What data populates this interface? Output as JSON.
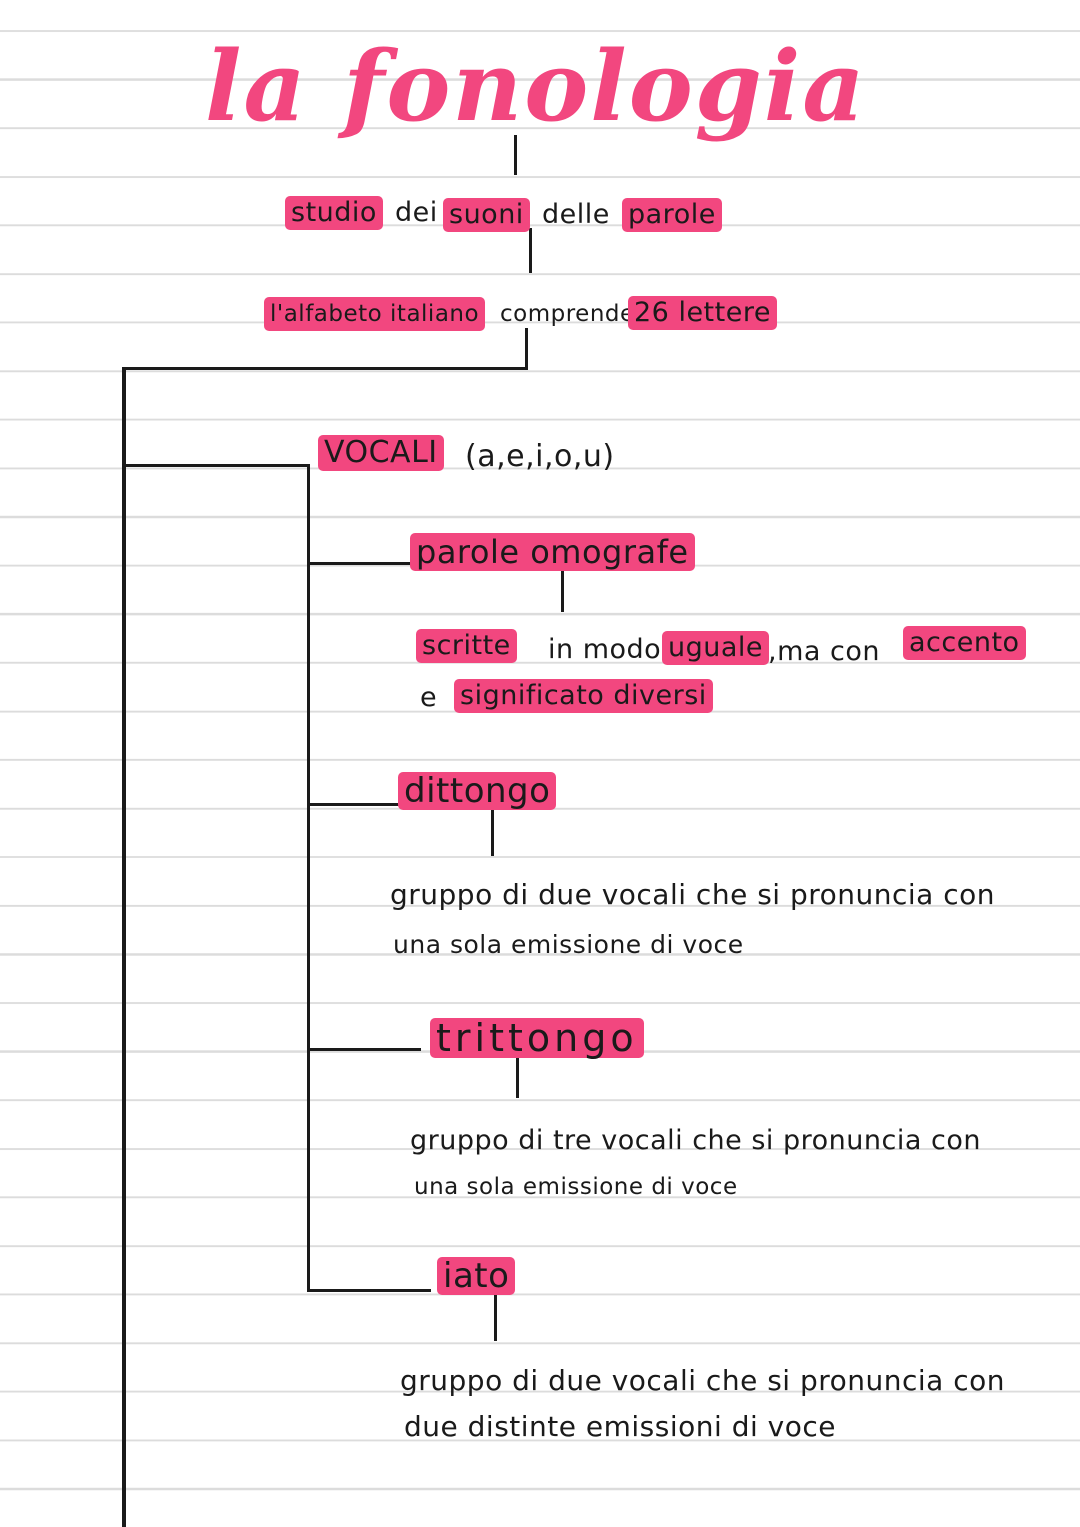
{
  "title": "la fonologia",
  "colors": {
    "highlight": "#f2477f",
    "ink": "#1a1a1a"
  },
  "definition": {
    "w1": "studio",
    "w2": "dei",
    "w3": "suoni",
    "w4": "delle",
    "w5": "parole"
  },
  "alphabet": {
    "w1": "l'alfabeto italiano",
    "w2": "comprende",
    "w3": "26 lettere"
  },
  "vocali": {
    "label": "VOCALI",
    "list": "(a,e,i,o,u)"
  },
  "omografe": {
    "label": "parole omografe",
    "w1": "scritte",
    "w2": "in modo",
    "w3": "uguale",
    "w4": ",ma con",
    "w5": "accento",
    "w6": "e",
    "w7": "significato diversi"
  },
  "dittongo": {
    "label": "dittongo",
    "line1": "gruppo di due vocali che si pronuncia con",
    "line2": "una sola emissione di voce"
  },
  "trittongo": {
    "label": "trittongo",
    "line1": "gruppo di tre vocali che si pronuncia con",
    "line2": "una sola emissione di voce"
  },
  "iato": {
    "label": "iato",
    "line1": "gruppo di due vocali che si pronuncia con",
    "line2": "due distinte emissioni di voce"
  }
}
